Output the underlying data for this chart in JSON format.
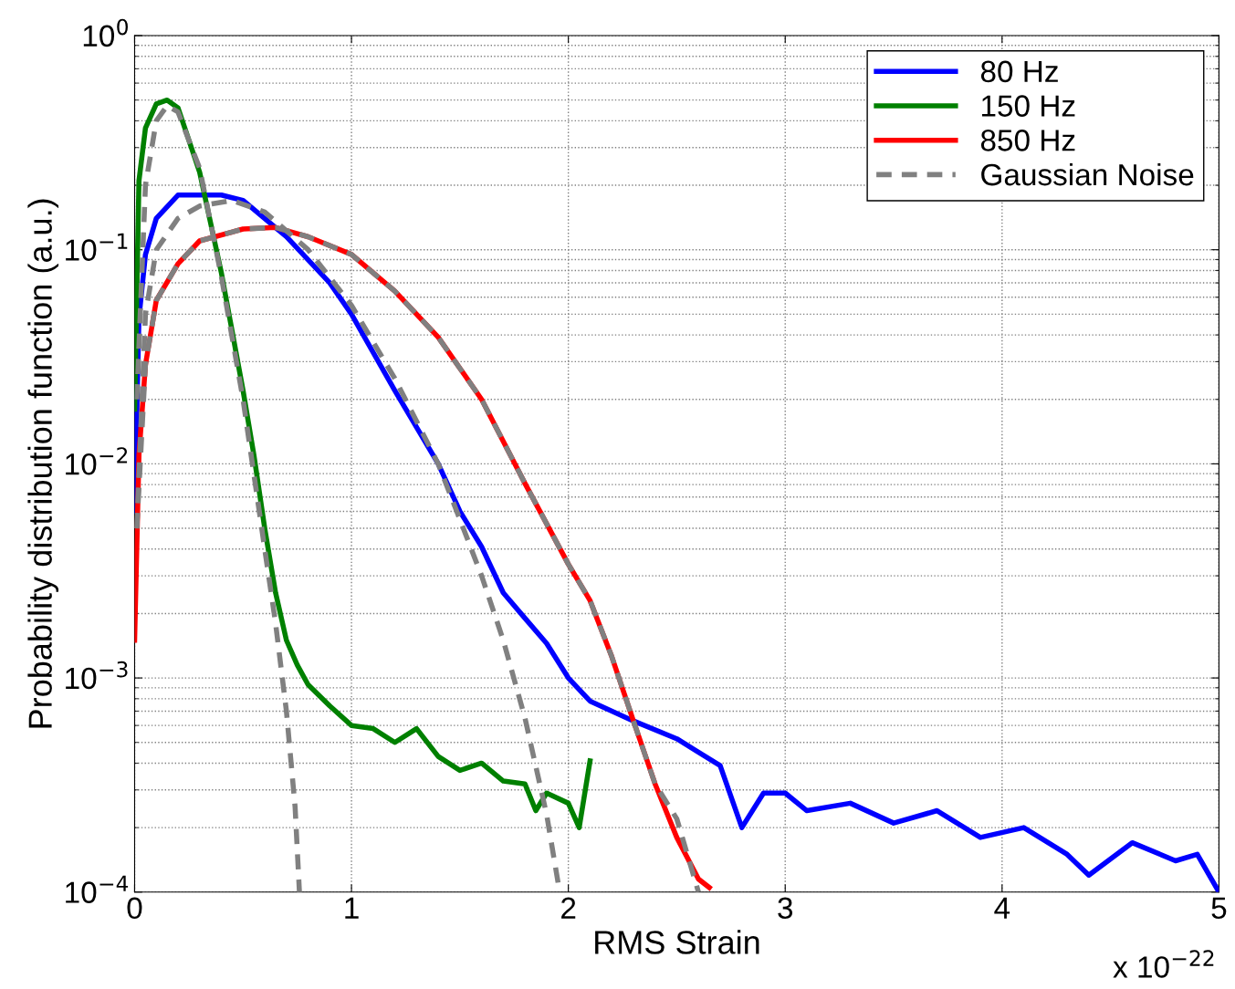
{
  "chart_data": {
    "type": "line",
    "xlabel": "RMS Strain",
    "ylabel": "Probability distribution function (a.u.)",
    "log": "y",
    "grid": true,
    "legend": "top right",
    "line_style": "solid",
    "marker": "none",
    "xlim": [
      0,
      5
    ],
    "xticks": [
      0,
      1,
      2,
      3,
      4,
      5
    ],
    "ylim": [
      0.0001,
      1
    ],
    "yticks": [
      {
        "value": 0.0001,
        "label": "10$^{−4}$"
      },
      {
        "value": 0.001,
        "label": "10$^{−3}$"
      },
      {
        "value": 0.01,
        "label": "10$^{−2}$"
      },
      {
        "value": 0.1,
        "label": "10$^{−1}$"
      },
      {
        "value": 1,
        "label": "10$^{0}$"
      }
    ],
    "annotations": [
      "x 10$^{−22}$"
    ],
    "series": [
      {
        "name": "80 Hz",
        "color": "#0000ff",
        "x": [
          0,
          0.02,
          0.05,
          0.1,
          0.2,
          0.4,
          0.5,
          0.7,
          0.9,
          1.0,
          1.2,
          1.4,
          1.5,
          1.6,
          1.7,
          1.8,
          1.9,
          2.0,
          2.1,
          2.3,
          2.5,
          2.7,
          2.8,
          2.9,
          3.0,
          3.1,
          3.3,
          3.5,
          3.7,
          3.9,
          4.1,
          4.3,
          4.4,
          4.6,
          4.8,
          4.9,
          5.0
        ],
        "values": [
          0.006,
          0.048,
          0.095,
          0.14,
          0.18,
          0.18,
          0.17,
          0.115,
          0.07,
          0.05,
          0.022,
          0.01,
          0.006,
          0.0041,
          0.0025,
          0.0019,
          0.00145,
          0.001,
          0.00078,
          0.00063,
          0.00052,
          0.00039,
          0.0002,
          0.00029,
          0.00029,
          0.00024,
          0.00026,
          0.00021,
          0.00024,
          0.00018,
          0.0002,
          0.00015,
          0.00012,
          0.00017,
          0.00014,
          0.00015,
          0.0001
        ]
      },
      {
        "name": "150 Hz",
        "color": "#008000",
        "x": [
          0,
          0.02,
          0.05,
          0.1,
          0.15,
          0.2,
          0.3,
          0.4,
          0.5,
          0.55,
          0.6,
          0.65,
          0.7,
          0.75,
          0.8,
          0.9,
          1.0,
          1.1,
          1.2,
          1.3,
          1.4,
          1.5,
          1.6,
          1.7,
          1.8,
          1.85,
          1.9,
          2.0,
          2.05,
          2.1
        ],
        "values": [
          0.018,
          0.21,
          0.37,
          0.48,
          0.5,
          0.46,
          0.23,
          0.078,
          0.022,
          0.011,
          0.005,
          0.0025,
          0.0015,
          0.00115,
          0.00093,
          0.00074,
          0.0006,
          0.00058,
          0.0005,
          0.00058,
          0.00043,
          0.00037,
          0.0004,
          0.00033,
          0.00032,
          0.00024,
          0.00029,
          0.00026,
          0.0002,
          0.00041
        ]
      },
      {
        "name": "850 Hz",
        "color": "#ff0000",
        "x": [
          0,
          0.02,
          0.05,
          0.1,
          0.2,
          0.3,
          0.5,
          0.65,
          0.8,
          1.0,
          1.2,
          1.4,
          1.6,
          1.8,
          2.0,
          2.1,
          2.2,
          2.3,
          2.4,
          2.5,
          2.6,
          2.65
        ],
        "values": [
          0.0015,
          0.011,
          0.029,
          0.058,
          0.086,
          0.11,
          0.125,
          0.127,
          0.115,
          0.095,
          0.064,
          0.039,
          0.02,
          0.0081,
          0.0034,
          0.0023,
          0.00126,
          0.00063,
          0.00032,
          0.00018,
          0.000115,
          0.000105
        ]
      },
      {
        "name": "Gaussian Noise",
        "color": "#808080",
        "line_style": "dashed",
        "x": [
          0.01,
          0.05,
          0.1,
          0.2,
          0.3,
          0.45,
          0.6,
          0.8,
          1.0,
          1.2,
          1.4,
          1.5,
          1.6,
          1.7,
          1.8,
          1.9,
          1.96
        ],
        "values": [
          0.005,
          0.05,
          0.1,
          0.14,
          0.16,
          0.17,
          0.15,
          0.1,
          0.055,
          0.025,
          0.01,
          0.0055,
          0.003,
          0.0015,
          0.00065,
          0.00023,
          0.0001
        ]
      },
      {
        "color": "#808080",
        "line_style": "dashed",
        "x": [
          0.01,
          0.05,
          0.1,
          0.15,
          0.2,
          0.3,
          0.4,
          0.5,
          0.6,
          0.65,
          0.7,
          0.74,
          0.76
        ],
        "values": [
          0.02,
          0.2,
          0.4,
          0.47,
          0.44,
          0.24,
          0.075,
          0.02,
          0.004,
          0.0018,
          0.0007,
          0.00025,
          0.0001
        ]
      },
      {
        "color": "#808080",
        "line_style": "dashed",
        "x": [
          0.01,
          0.05,
          0.1,
          0.2,
          0.3,
          0.5,
          0.65,
          0.8,
          1.0,
          1.2,
          1.4,
          1.6,
          1.8,
          2.0,
          2.1,
          2.2,
          2.3,
          2.4,
          2.5,
          2.6
        ],
        "values": [
          0.005,
          0.029,
          0.058,
          0.086,
          0.11,
          0.125,
          0.127,
          0.115,
          0.095,
          0.064,
          0.039,
          0.02,
          0.0081,
          0.0034,
          0.0023,
          0.00126,
          0.00063,
          0.00032,
          0.00022,
          0.0001
        ]
      }
    ]
  }
}
